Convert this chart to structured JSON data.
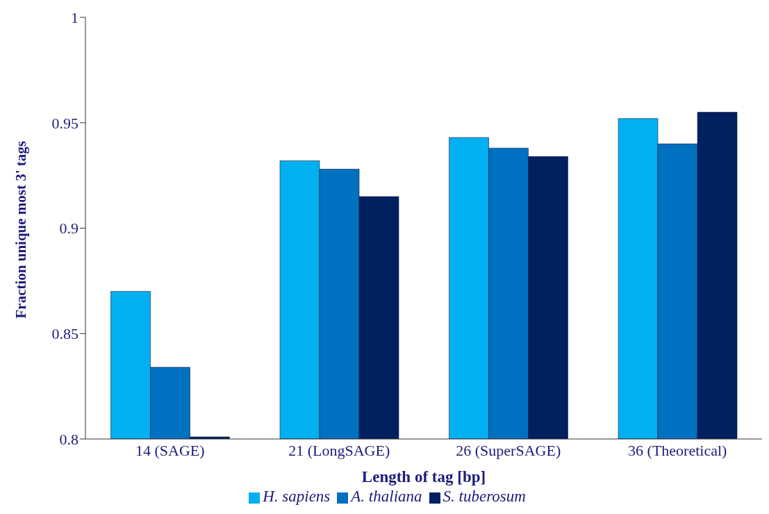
{
  "chart_data": {
    "type": "bar",
    "xlabel": "Length of tag [bp]",
    "ylabel": "Fraction unique most 3' tags",
    "categories": [
      "14 (SAGE)",
      "21 (LongSAGE)",
      "26 (SuperSAGE)",
      "36 (Theoretical)"
    ],
    "series": [
      {
        "name": "H. sapiens",
        "color": "#00b0f0",
        "values": [
          0.87,
          0.932,
          0.943,
          0.952
        ]
      },
      {
        "name": "A. thaliana",
        "color": "#0070c0",
        "values": [
          0.834,
          0.928,
          0.938,
          0.94
        ]
      },
      {
        "name": "S. tuberosum",
        "color": "#002060",
        "values": [
          0.801,
          0.915,
          0.934,
          0.955
        ]
      }
    ],
    "ylim": [
      0.8,
      1
    ],
    "yticks": [
      0.8,
      0.85,
      0.9,
      0.95,
      1
    ],
    "grid": false,
    "legend": "bottom"
  }
}
